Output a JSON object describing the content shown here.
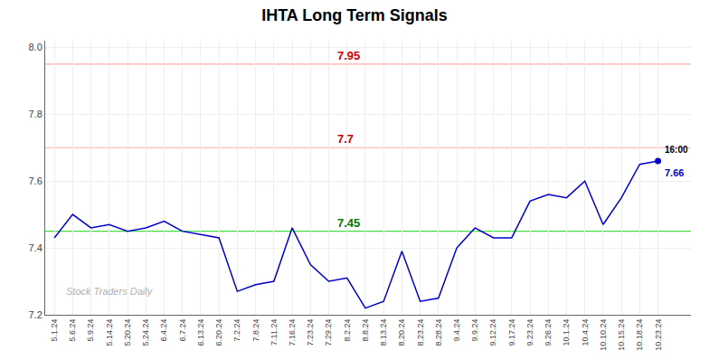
{
  "chart_data": {
    "type": "line",
    "title": "IHTA Long Term Signals",
    "categories": [
      "5.1.24",
      "5.6.24",
      "5.9.24",
      "5.14.24",
      "5.20.24",
      "5.24.24",
      "6.4.24",
      "6.7.24",
      "6.13.24",
      "6.20.24",
      "7.2.24",
      "7.8.24",
      "7.11.24",
      "7.16.24",
      "7.23.24",
      "7.29.24",
      "8.2.24",
      "8.8.24",
      "8.13.24",
      "8.20.24",
      "8.23.24",
      "8.28.24",
      "9.4.24",
      "9.9.24",
      "9.12.24",
      "9.17.24",
      "9.23.24",
      "9.26.24",
      "10.1.24",
      "10.4.24",
      "10.10.24",
      "10.15.24",
      "10.18.24",
      "10.23.24"
    ],
    "values": [
      7.43,
      7.5,
      7.46,
      7.47,
      7.45,
      7.46,
      7.48,
      7.45,
      7.44,
      7.43,
      7.27,
      7.29,
      7.3,
      7.46,
      7.35,
      7.3,
      7.31,
      7.22,
      7.24,
      7.39,
      7.24,
      7.25,
      7.4,
      7.46,
      7.43,
      7.43,
      7.54,
      7.56,
      7.55,
      7.6,
      7.47,
      7.55,
      7.65,
      7.66
    ],
    "color": "#0000cc",
    "ylim": [
      7.2,
      8.02
    ],
    "yticks": [
      7.2,
      7.4,
      7.6,
      7.8,
      {
        "value": 8.0,
        "label": "8.0"
      }
    ],
    "grid": true,
    "reference_lines": [
      {
        "y": 7.95,
        "label": "7.95",
        "color": "#ffaaaa",
        "label_color": "#cc0000"
      },
      {
        "y": 7.7,
        "label": "7.7",
        "color": "#ffaaaa",
        "label_color": "#cc0000"
      },
      {
        "y": 7.45,
        "label": "7.45",
        "color": "#44dd44",
        "label_color": "#007700"
      }
    ],
    "end_labels": [
      "16:00",
      "7.66"
    ],
    "watermark": "Stock Traders Daily",
    "watermark_color": "#b0b0b0"
  }
}
